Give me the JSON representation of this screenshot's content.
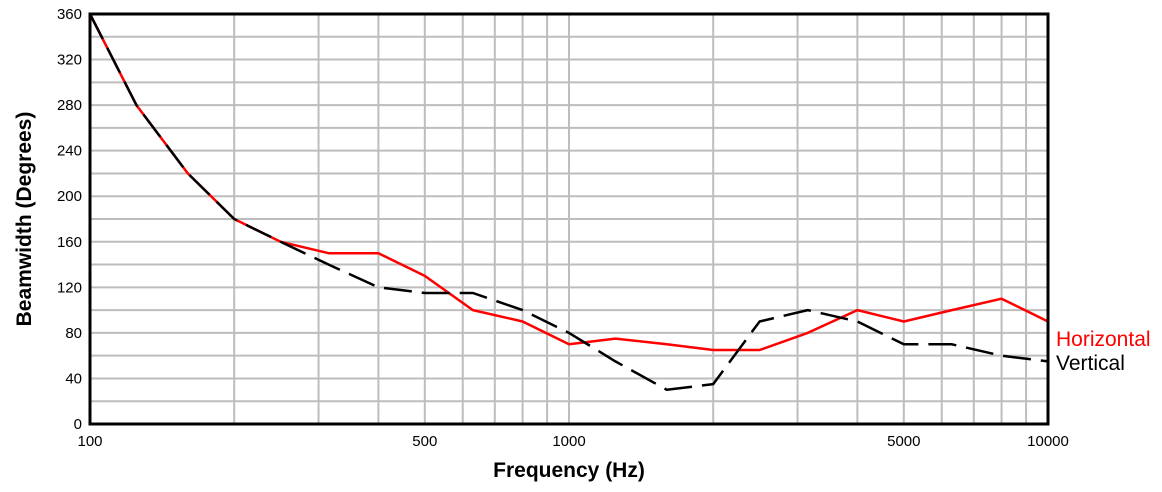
{
  "chart_data": {
    "type": "line",
    "title": "",
    "xlabel": "Frequency (Hz)",
    "ylabel": "Beamwidth (Degrees)",
    "x_scale": "log",
    "xlim": [
      100,
      10000
    ],
    "ylim": [
      0,
      360
    ],
    "grid": true,
    "x_tick_labels": [
      "100",
      "500",
      "1000",
      "5000",
      "10000"
    ],
    "x_tick_values": [
      100,
      500,
      1000,
      5000,
      10000
    ],
    "y_ticks": [
      0,
      40,
      80,
      120,
      160,
      200,
      240,
      280,
      320,
      360
    ],
    "legend_position": "right",
    "series": [
      {
        "name": "Horizontal",
        "color": "#ff0000",
        "line_style": "solid",
        "x": [
          100,
          125,
          160,
          200,
          250,
          315,
          400,
          500,
          630,
          800,
          1000,
          1250,
          1600,
          2000,
          2500,
          3150,
          4000,
          5000,
          6300,
          8000,
          10000
        ],
        "y": [
          360,
          280,
          220,
          180,
          160,
          150,
          150,
          130,
          100,
          90,
          70,
          75,
          70,
          65,
          65,
          80,
          100,
          90,
          100,
          110,
          90
        ]
      },
      {
        "name": "Vertical",
        "color": "#000000",
        "line_style": "dashed",
        "x": [
          100,
          125,
          160,
          200,
          250,
          315,
          400,
          500,
          630,
          800,
          1000,
          1250,
          1600,
          2000,
          2500,
          3150,
          4000,
          5000,
          6300,
          8000,
          10000
        ],
        "y": [
          360,
          280,
          220,
          180,
          160,
          140,
          120,
          115,
          115,
          100,
          80,
          55,
          30,
          35,
          90,
          100,
          90,
          70,
          70,
          60,
          55
        ]
      }
    ]
  }
}
